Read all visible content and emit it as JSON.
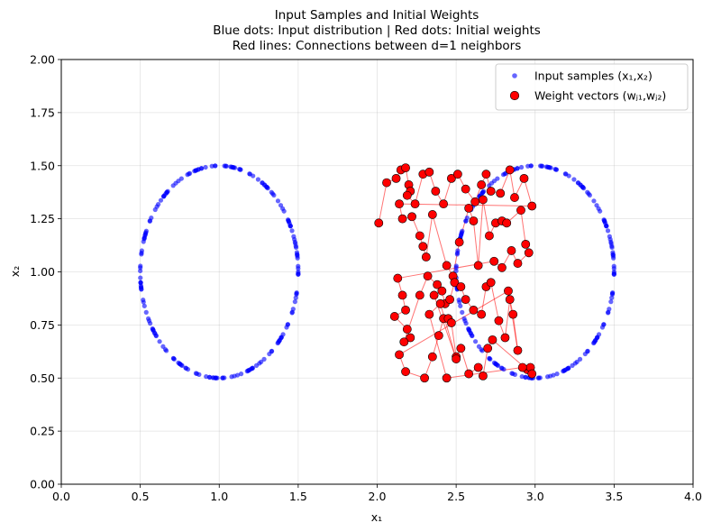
{
  "chart_data": {
    "type": "scatter",
    "title_lines": [
      "Input Samples and Initial Weights",
      "Blue dots: Input distribution | Red dots: Initial weights",
      "Red lines: Connections between d=1 neighbors"
    ],
    "xlabel": "x₁",
    "ylabel": "x₂",
    "xlim": [
      0.0,
      4.0
    ],
    "ylim": [
      0.0,
      2.0
    ],
    "xticks": [
      "0.0",
      "0.5",
      "1.0",
      "1.5",
      "2.0",
      "2.5",
      "3.0",
      "3.5",
      "4.0"
    ],
    "yticks": [
      "0.00",
      "0.25",
      "0.50",
      "0.75",
      "1.00",
      "1.25",
      "1.50",
      "1.75",
      "2.00"
    ],
    "grid": true,
    "legend_position": "top-right",
    "colors": {
      "input": "#0000ff",
      "weight": "#ff0000",
      "connection": "#ff0000"
    },
    "input_samples": {
      "name": "Input samples (x₁,x₂)",
      "rings": [
        {
          "center": [
            1.0,
            1.0
          ],
          "radius": 0.5,
          "count": 200
        },
        {
          "center": [
            3.0,
            1.0
          ],
          "radius": 0.5,
          "count": 200
        }
      ]
    },
    "weights": {
      "name": "Weight vectors (wⱼ₁,wⱼ₂)",
      "points": [
        [
          2.01,
          1.23
        ],
        [
          2.06,
          1.42
        ],
        [
          2.12,
          1.44
        ],
        [
          2.15,
          1.48
        ],
        [
          2.18,
          1.49
        ],
        [
          2.2,
          1.41
        ],
        [
          2.21,
          1.38
        ],
        [
          2.19,
          1.36
        ],
        [
          2.24,
          1.32
        ],
        [
          2.29,
          1.46
        ],
        [
          2.33,
          1.47
        ],
        [
          2.37,
          1.38
        ],
        [
          2.42,
          1.32
        ],
        [
          2.47,
          1.44
        ],
        [
          2.51,
          1.46
        ],
        [
          2.56,
          1.39
        ],
        [
          2.62,
          1.33
        ],
        [
          2.66,
          1.41
        ],
        [
          2.69,
          1.46
        ],
        [
          2.72,
          1.38
        ],
        [
          2.78,
          1.37
        ],
        [
          2.84,
          1.48
        ],
        [
          2.87,
          1.35
        ],
        [
          2.93,
          1.44
        ],
        [
          2.98,
          1.31
        ],
        [
          2.14,
          1.32
        ],
        [
          2.16,
          1.25
        ],
        [
          2.22,
          1.26
        ],
        [
          2.27,
          1.17
        ],
        [
          2.29,
          1.12
        ],
        [
          2.31,
          1.07
        ],
        [
          2.35,
          1.27
        ],
        [
          2.44,
          1.03
        ],
        [
          2.48,
          0.98
        ],
        [
          2.52,
          1.14
        ],
        [
          2.58,
          1.3
        ],
        [
          2.61,
          1.24
        ],
        [
          2.64,
          1.03
        ],
        [
          2.67,
          1.34
        ],
        [
          2.71,
          1.17
        ],
        [
          2.75,
          1.23
        ],
        [
          2.79,
          1.24
        ],
        [
          2.82,
          1.23
        ],
        [
          2.91,
          1.29
        ],
        [
          2.94,
          1.13
        ],
        [
          2.96,
          1.09
        ],
        [
          2.89,
          1.04
        ],
        [
          2.85,
          1.1
        ],
        [
          2.79,
          1.02
        ],
        [
          2.74,
          1.05
        ],
        [
          2.13,
          0.97
        ],
        [
          2.16,
          0.89
        ],
        [
          2.18,
          0.82
        ],
        [
          2.11,
          0.79
        ],
        [
          2.19,
          0.73
        ],
        [
          2.21,
          0.69
        ],
        [
          2.17,
          0.67
        ],
        [
          2.27,
          0.89
        ],
        [
          2.32,
          0.98
        ],
        [
          2.38,
          0.94
        ],
        [
          2.41,
          0.91
        ],
        [
          2.43,
          0.85
        ],
        [
          2.46,
          0.87
        ],
        [
          2.49,
          0.95
        ],
        [
          2.53,
          0.93
        ],
        [
          2.56,
          0.87
        ],
        [
          2.61,
          0.82
        ],
        [
          2.66,
          0.8
        ],
        [
          2.69,
          0.93
        ],
        [
          2.72,
          0.95
        ],
        [
          2.77,
          0.77
        ],
        [
          2.81,
          0.69
        ],
        [
          2.84,
          0.87
        ],
        [
          2.86,
          0.8
        ],
        [
          2.89,
          0.63
        ],
        [
          2.83,
          0.91
        ],
        [
          2.14,
          0.61
        ],
        [
          2.18,
          0.53
        ],
        [
          2.3,
          0.5
        ],
        [
          2.35,
          0.6
        ],
        [
          2.39,
          0.7
        ],
        [
          2.42,
          0.78
        ],
        [
          2.45,
          0.78
        ],
        [
          2.47,
          0.76
        ],
        [
          2.5,
          0.6
        ],
        [
          2.53,
          0.64
        ],
        [
          2.58,
          0.52
        ],
        [
          2.64,
          0.55
        ],
        [
          2.67,
          0.51
        ],
        [
          2.7,
          0.64
        ],
        [
          2.73,
          0.68
        ],
        [
          2.95,
          0.54
        ],
        [
          2.97,
          0.55
        ],
        [
          2.98,
          0.52
        ],
        [
          2.92,
          0.55
        ],
        [
          2.44,
          0.5
        ],
        [
          2.33,
          0.8
        ],
        [
          2.4,
          0.85
        ],
        [
          2.5,
          0.59
        ],
        [
          2.36,
          0.89
        ]
      ]
    }
  }
}
